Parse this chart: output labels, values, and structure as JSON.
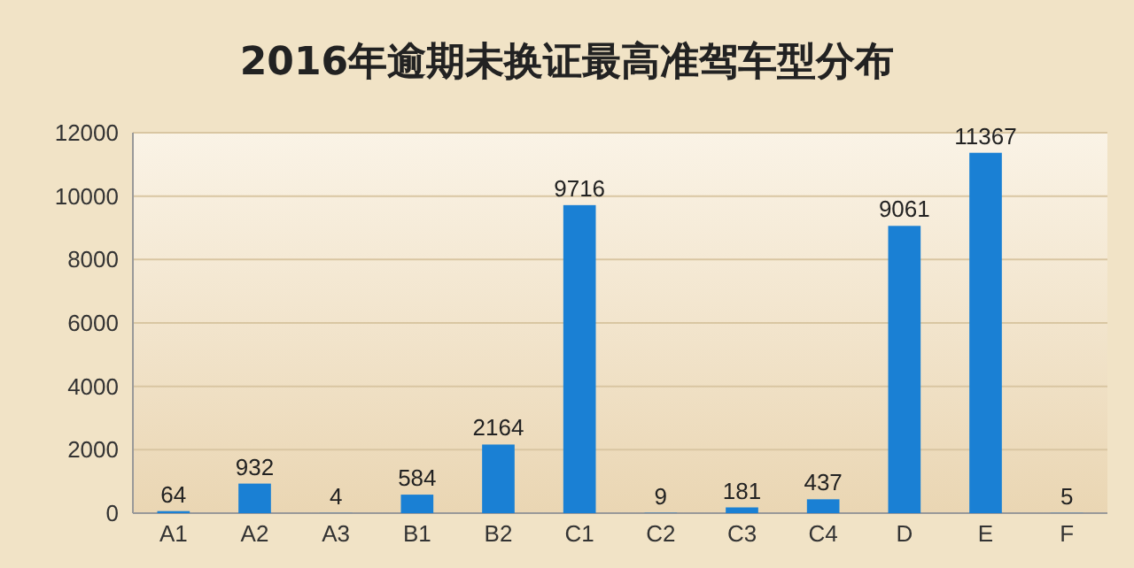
{
  "chart_data": {
    "type": "bar",
    "title": "2016年逾期未换证最高准驾车型分布",
    "categories": [
      "A1",
      "A2",
      "A3",
      "B1",
      "B2",
      "C1",
      "C2",
      "C3",
      "C4",
      "D",
      "E",
      "F"
    ],
    "values": [
      64,
      932,
      4,
      584,
      2164,
      9716,
      9,
      181,
      437,
      9061,
      11367,
      5
    ],
    "color": "#1a80d4",
    "ylim": [
      0,
      12000
    ],
    "yticks": [
      0,
      2000,
      4000,
      6000,
      8000,
      10000,
      12000
    ],
    "grid": "y",
    "data_labels": true
  }
}
